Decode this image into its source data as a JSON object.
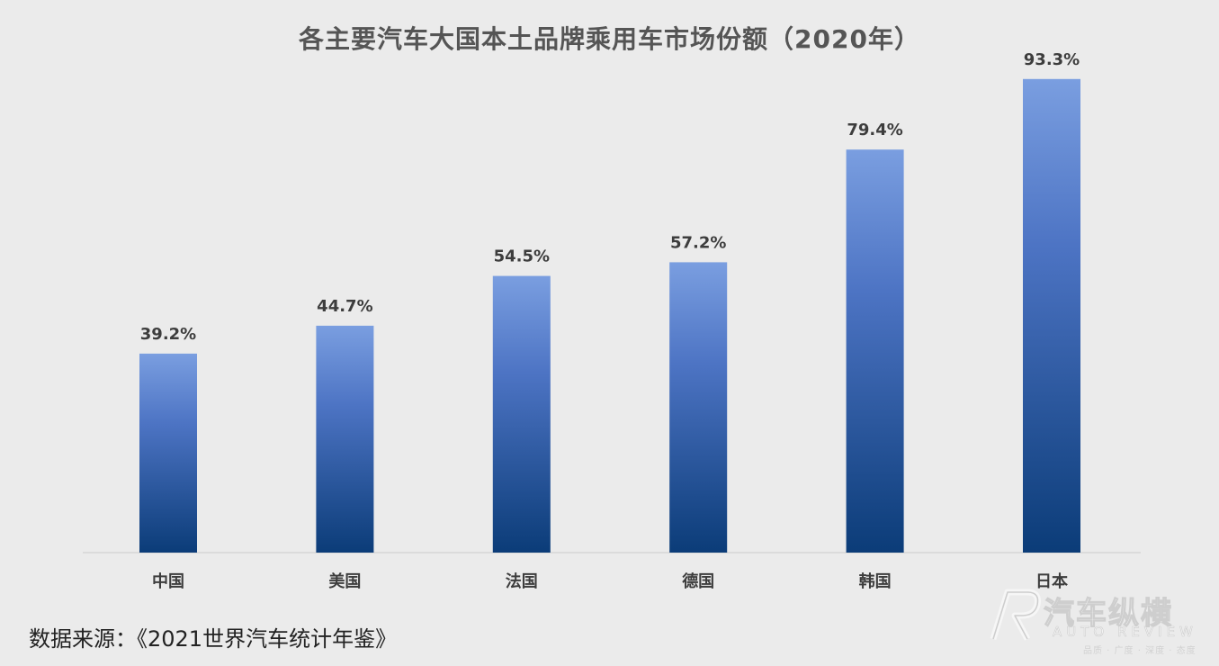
{
  "chart_data": {
    "type": "bar",
    "title": "各主要汽车大国本土品牌乘用车市场份额（2020年）",
    "categories": [
      "中国",
      "美国",
      "法国",
      "德国",
      "韩国",
      "日本"
    ],
    "values": [
      39.2,
      44.7,
      54.5,
      57.2,
      79.4,
      93.3
    ],
    "value_labels": [
      "39.2%",
      "44.7%",
      "54.5%",
      "57.2%",
      "79.4%",
      "93.3%"
    ],
    "unit": "%",
    "xlabel": "",
    "ylabel": "",
    "ylim": [
      0,
      100
    ],
    "grid": false,
    "legend": "none",
    "bar_gradient": [
      "#7a9ee0",
      "#0b3c78"
    ]
  },
  "source_note": "数据来源：《2021世界汽车统计年鉴》",
  "watermark": {
    "title": "汽车纵横",
    "subtitle": "AUTO REVIEW",
    "tagline": "品质 · 广度 · 深度 · 态度"
  }
}
